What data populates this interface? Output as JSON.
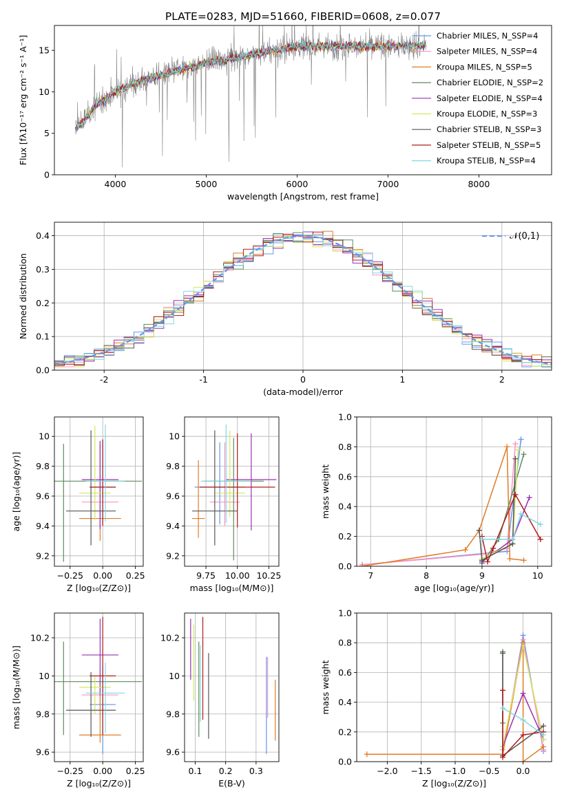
{
  "figure": {
    "title": "PLATE=0283, MJD=51660, FIBERID=0608, z=0.077"
  },
  "chart_data": [
    {
      "id": "spectrum",
      "type": "line",
      "xlabel": "wavelength [Angstrom, rest frame]",
      "ylabel": "Flux [fλ10⁻¹⁷ erg cm⁻² s⁻¹ A⁻¹]",
      "xlim": [
        3330,
        8800
      ],
      "ylim": [
        0,
        18
      ],
      "xticks": [
        4000,
        5000,
        6000,
        7000,
        8000
      ],
      "yticks": [
        0,
        5,
        10,
        15
      ],
      "legend_position": "right",
      "data_x_range": [
        3560,
        7420
      ],
      "series": [
        {
          "name": "data",
          "kind": "data",
          "color": "#808080"
        },
        {
          "name": "Chabrier MILES, N_SSP=4",
          "color": "#6495ed"
        },
        {
          "name": "Salpeter MILES, N_SSP=4",
          "color": "#ff91c0"
        },
        {
          "name": "Kroupa MILES, N_SSP=5",
          "color": "#e07b24"
        },
        {
          "name": "Chabrier ELODIE, N_SSP=2",
          "color": "#5b8c5a"
        },
        {
          "name": "Salpeter ELODIE, N_SSP=4",
          "color": "#9b2fb2"
        },
        {
          "name": "Kroupa ELODIE, N_SSP=3",
          "color": "#d4e85a"
        },
        {
          "name": "Chabrier STELIB, N_SSP=3",
          "color": "#555555"
        },
        {
          "name": "Salpeter STELIB, N_SSP=5",
          "color": "#b21a1a"
        },
        {
          "name": "Kroupa STELIB, N_SSP=4",
          "color": "#7fd8e0"
        }
      ],
      "continuum": [
        [
          3560,
          5.5
        ],
        [
          3650,
          6.5
        ],
        [
          3800,
          8.5
        ],
        [
          4000,
          10.0
        ],
        [
          4200,
          11.0
        ],
        [
          4500,
          12.0
        ],
        [
          5000,
          13.5
        ],
        [
          5500,
          14.5
        ],
        [
          6000,
          15.5
        ],
        [
          6500,
          15.5
        ],
        [
          7000,
          15.5
        ],
        [
          7400,
          15.6
        ]
      ]
    },
    {
      "id": "residuals",
      "type": "histogram",
      "xlabel": "(data-model)/error",
      "ylabel": "Normed distribution",
      "xlim": [
        -2.5,
        2.5
      ],
      "ylim": [
        0,
        0.44
      ],
      "xticks": [
        -2,
        -1,
        0,
        1,
        2
      ],
      "yticks": [
        0.0,
        0.1,
        0.2,
        0.3,
        0.4
      ],
      "grid": true,
      "legend": [
        {
          "name": "𝒩(0,1)",
          "style": "dashed",
          "color": "#6495ed"
        }
      ],
      "legend_position": "top-right",
      "bin_width": 0.1,
      "bin_start": -2.5
    },
    {
      "id": "z-age",
      "type": "errorbar",
      "xlabel": "Z [log₁₀(Z/Z⊙)]",
      "ylabel": "age  [log₁₀(age/yr)]",
      "xlim": [
        -0.37,
        0.31
      ],
      "ylim": [
        9.13,
        10.13
      ],
      "xticks": [
        -0.25,
        0.0,
        0.25
      ],
      "xticklabels": [
        "−0.25",
        "0.00",
        "0.25"
      ],
      "yticks": [
        9.2,
        9.4,
        9.6,
        9.8,
        10.0
      ],
      "grid": true,
      "points": [
        {
          "x": 0.0,
          "xerr": 0.1,
          "y": 9.66,
          "yerr_lo": 0.24,
          "yerr_hi": 0.32,
          "color": "#6495ed"
        },
        {
          "x": -0.02,
          "xerr": 0.14,
          "y": 9.56,
          "yerr_lo": 0.16,
          "yerr_hi": 0.4,
          "color": "#ff91c0"
        },
        {
          "x": -0.02,
          "xerr": 0.16,
          "y": 9.45,
          "yerr_lo": 0.15,
          "yerr_hi": 0.49,
          "color": "#e07b24"
        },
        {
          "x": -0.3,
          "xerr": 0.6,
          "y": 9.7,
          "yerr_lo": 0.54,
          "yerr_hi": 0.25,
          "color": "#5b8c5a"
        },
        {
          "x": -0.02,
          "xerr": 0.14,
          "y": 9.71,
          "yerr_lo": 0.33,
          "yerr_hi": 0.26,
          "color": "#9b2fb2"
        },
        {
          "x": -0.06,
          "xerr": 0.12,
          "y": 9.62,
          "yerr_lo": 0.18,
          "yerr_hi": 0.45,
          "color": "#d4e85a"
        },
        {
          "x": -0.09,
          "xerr": 0.19,
          "y": 9.5,
          "yerr_lo": 0.23,
          "yerr_hi": 0.54,
          "color": "#555555"
        },
        {
          "x": 0.0,
          "xerr": 0.1,
          "y": 9.66,
          "yerr_lo": 0.26,
          "yerr_hi": 0.32,
          "color": "#b21a1a"
        },
        {
          "x": 0.02,
          "xerr": 0.15,
          "y": 9.7,
          "yerr_lo": 0.27,
          "yerr_hi": 0.38,
          "color": "#7fd8e0"
        }
      ]
    },
    {
      "id": "mass-age",
      "type": "errorbar",
      "xlabel": "mass [log₁₀(M/M⊙)]",
      "ylabel": "",
      "xlim": [
        9.58,
        10.33
      ],
      "ylim": [
        9.13,
        10.13
      ],
      "xticks": [
        9.75,
        10.0,
        10.25
      ],
      "xticklabels": [
        "9.75",
        "10.00",
        "10.25"
      ],
      "yticks": [
        9.2,
        9.4,
        9.6,
        9.8,
        10.0
      ],
      "grid": true,
      "points": [
        {
          "x": 9.86,
          "xerr": 0.2,
          "y": 9.66,
          "yerr_lo": 0.25,
          "yerr_hi": 0.3,
          "color": "#6495ed"
        },
        {
          "x": 9.9,
          "xerr": 0.12,
          "y": 9.56,
          "yerr_lo": 0.16,
          "yerr_hi": 0.4,
          "color": "#ff91c0"
        },
        {
          "x": 9.69,
          "xerr": 0.05,
          "y": 9.45,
          "yerr_lo": 0.13,
          "yerr_hi": 0.39,
          "color": "#e07b24"
        },
        {
          "x": 9.97,
          "xerr": 0.24,
          "y": 9.7,
          "yerr_lo": 0.53,
          "yerr_hi": 0.29,
          "color": "#5b8c5a"
        },
        {
          "x": 10.11,
          "xerr": 0.2,
          "y": 9.71,
          "yerr_lo": 0.34,
          "yerr_hi": 0.31,
          "color": "#9b2fb2"
        },
        {
          "x": 9.94,
          "xerr": 0.12,
          "y": 9.62,
          "yerr_lo": 0.16,
          "yerr_hi": 0.42,
          "color": "#d4e85a"
        },
        {
          "x": 9.82,
          "xerr": 0.18,
          "y": 9.5,
          "yerr_lo": 0.23,
          "yerr_hi": 0.54,
          "color": "#555555"
        },
        {
          "x": 10.0,
          "xerr": 0.3,
          "y": 9.66,
          "yerr_lo": 0.27,
          "yerr_hi": 0.36,
          "color": "#b21a1a"
        },
        {
          "x": 9.91,
          "xerr": 0.2,
          "y": 9.7,
          "yerr_lo": 0.28,
          "yerr_hi": 0.38,
          "color": "#7fd8e0"
        }
      ]
    },
    {
      "id": "age-weight",
      "type": "line",
      "xlabel": "age  [log₁₀(age/yr)]",
      "ylabel": "mass weight",
      "xlim": [
        6.75,
        10.25
      ],
      "ylim": [
        0,
        1
      ],
      "xticks": [
        7,
        8,
        9,
        10
      ],
      "yticks": [
        0.0,
        0.2,
        0.4,
        0.6,
        0.8,
        1.0
      ],
      "grid": true,
      "series": [
        {
          "name": "Chabrier MILES",
          "color": "#6495ed",
          "x": [
            6.85,
            9.45,
            9.7
          ],
          "y": [
            0.01,
            0.1,
            0.85
          ]
        },
        {
          "name": "Salpeter MILES",
          "color": "#ff91c0",
          "x": [
            6.85,
            9.0,
            9.45,
            9.6
          ],
          "y": [
            0.01,
            0.08,
            0.12,
            0.82
          ]
        },
        {
          "name": "Kroupa MILES",
          "color": "#e07b24",
          "x": [
            6.85,
            8.7,
            8.95,
            9.45,
            9.5,
            9.75
          ],
          "y": [
            0.0,
            0.11,
            0.24,
            0.8,
            0.05,
            0.04
          ]
        },
        {
          "name": "Chabrier ELODIE",
          "color": "#5b8c5a",
          "x": [
            9.0,
            9.3,
            9.75
          ],
          "y": [
            0.02,
            0.18,
            0.75
          ]
        },
        {
          "name": "Salpeter ELODIE",
          "color": "#9b2fb2",
          "x": [
            9.0,
            9.55,
            9.85
          ],
          "y": [
            0.03,
            0.18,
            0.46
          ]
        },
        {
          "name": "Kroupa ELODIE",
          "color": "#d4e85a",
          "x": [
            9.0,
            9.55,
            9.65
          ],
          "y": [
            0.05,
            0.15,
            0.78
          ]
        },
        {
          "name": "Chabrier STELIB",
          "color": "#555555",
          "x": [
            8.95,
            9.0,
            9.55,
            9.6
          ],
          "y": [
            0.24,
            0.04,
            0.15,
            0.72
          ]
        },
        {
          "name": "Salpeter STELIB",
          "color": "#b21a1a",
          "x": [
            9.0,
            9.1,
            9.2,
            9.6,
            10.05
          ],
          "y": [
            0.2,
            0.03,
            0.12,
            0.48,
            0.18
          ]
        },
        {
          "name": "Kroupa STELIB",
          "color": "#7fd8e0",
          "x": [
            9.0,
            9.55,
            9.7,
            10.05
          ],
          "y": [
            0.18,
            0.18,
            0.35,
            0.28
          ]
        }
      ]
    },
    {
      "id": "z-mass",
      "type": "errorbar",
      "xlabel": "Z [log₁₀(Z/Z⊙)]",
      "ylabel": "mass [log₁₀(M/M⊙)]",
      "xlim": [
        -0.37,
        0.31
      ],
      "ylim": [
        9.55,
        10.33
      ],
      "xticks": [
        -0.25,
        0.0,
        0.25
      ],
      "xticklabels": [
        "−0.25",
        "0.00",
        "0.25"
      ],
      "yticks": [
        9.6,
        9.8,
        10.0,
        10.2
      ],
      "grid": true,
      "points": [
        {
          "x": 0.0,
          "xerr": 0.1,
          "y": 9.85,
          "yerr_lo": 0.26,
          "yerr_hi": 0.2,
          "color": "#6495ed"
        },
        {
          "x": -0.02,
          "xerr": 0.14,
          "y": 9.9,
          "yerr_lo": 0.12,
          "yerr_hi": 0.14,
          "color": "#ff91c0"
        },
        {
          "x": -0.02,
          "xerr": 0.16,
          "y": 9.69,
          "yerr_lo": 0.04,
          "yerr_hi": 0.3,
          "color": "#e07b24"
        },
        {
          "x": -0.3,
          "xerr": 0.6,
          "y": 9.97,
          "yerr_lo": 0.28,
          "yerr_hi": 0.21,
          "color": "#5b8c5a"
        },
        {
          "x": -0.02,
          "xerr": 0.14,
          "y": 10.11,
          "yerr_lo": 0.21,
          "yerr_hi": 0.19,
          "color": "#9b2fb2"
        },
        {
          "x": -0.06,
          "xerr": 0.12,
          "y": 9.94,
          "yerr_lo": 0.14,
          "yerr_hi": 0.06,
          "color": "#d4e85a"
        },
        {
          "x": -0.09,
          "xerr": 0.19,
          "y": 9.82,
          "yerr_lo": 0.14,
          "yerr_hi": 0.2,
          "color": "#555555"
        },
        {
          "x": 0.0,
          "xerr": 0.1,
          "y": 10.0,
          "yerr_lo": 0.31,
          "yerr_hi": 0.31,
          "color": "#b21a1a"
        },
        {
          "x": 0.02,
          "xerr": 0.15,
          "y": 9.91,
          "yerr_lo": 0.21,
          "yerr_hi": 0.16,
          "color": "#7fd8e0"
        }
      ]
    },
    {
      "id": "ebv-mass",
      "type": "errorbar",
      "xlabel": "E(B-V)",
      "ylabel": "",
      "xlim": [
        0.065,
        0.375
      ],
      "ylim": [
        9.55,
        10.33
      ],
      "xticks": [
        0.1,
        0.2,
        0.3
      ],
      "yticks": [
        9.6,
        9.8,
        10.0,
        10.2
      ],
      "grid": true,
      "points": [
        {
          "x": 0.085,
          "y": 10.14,
          "yerr_lo": 0.16,
          "yerr_hi": 0.16,
          "color": "#9b2fb2"
        },
        {
          "x": 0.095,
          "y": 10.07,
          "yerr_lo": 0.2,
          "yerr_hi": 0.2,
          "color": "#d4e85a"
        },
        {
          "x": 0.112,
          "y": 9.9,
          "yerr_lo": 0.22,
          "yerr_hi": 0.28,
          "color": "#5b8c5a"
        },
        {
          "x": 0.125,
          "y": 10.05,
          "yerr_lo": 0.28,
          "yerr_hi": 0.26,
          "color": "#b21a1a"
        },
        {
          "x": 0.144,
          "y": 9.86,
          "yerr_lo": 0.19,
          "yerr_hi": 0.26,
          "color": "#555555"
        },
        {
          "x": 0.117,
          "y": 9.98,
          "yerr_lo": 0.22,
          "yerr_hi": 0.18,
          "color": "#7fd8e0"
        },
        {
          "x": 0.334,
          "y": 9.84,
          "yerr_lo": 0.25,
          "yerr_hi": 0.26,
          "color": "#6495ed"
        },
        {
          "x": 0.338,
          "y": 9.9,
          "yerr_lo": 0.12,
          "yerr_hi": 0.2,
          "color": "#ff91c0"
        },
        {
          "x": 0.363,
          "y": 9.82,
          "yerr_lo": 0.16,
          "yerr_hi": 0.16,
          "color": "#e07b24"
        }
      ]
    },
    {
      "id": "z-weight",
      "type": "line",
      "xlabel": "Z [log₁₀(Z/Z⊙)]",
      "ylabel": "mass weight",
      "xlim": [
        -2.45,
        0.42
      ],
      "ylim": [
        0,
        1
      ],
      "xticks": [
        -2.0,
        -1.5,
        -1.0,
        -0.5,
        0.0
      ],
      "xticklabels": [
        "−2.0",
        "−1.5",
        "−1.0",
        "−0.5",
        "0.0"
      ],
      "yticks": [
        0.0,
        0.2,
        0.4,
        0.6,
        0.8,
        1.0
      ],
      "grid": true,
      "series": [
        {
          "name": "Chabrier MILES",
          "color": "#6495ed",
          "x": [
            -0.3,
            0.0,
            0.3
          ],
          "y": [
            0.05,
            0.85,
            0.07
          ]
        },
        {
          "name": "Salpeter MILES",
          "color": "#ff91c0",
          "x": [
            -0.3,
            0.0,
            0.3
          ],
          "y": [
            0.08,
            0.82,
            0.08
          ]
        },
        {
          "name": "Kroupa MILES",
          "color": "#e07b24",
          "x": [
            -2.3,
            -0.3,
            0.0,
            0.0,
            0.3
          ],
          "y": [
            0.05,
            0.05,
            0.8,
            0.0,
            0.1
          ]
        },
        {
          "name": "Chabrier ELODIE",
          "color": "#5b8c5a",
          "x": [
            -0.3,
            -0.3
          ],
          "y": [
            0.26,
            0.74
          ]
        },
        {
          "name": "Salpeter ELODIE",
          "color": "#9b2fb2",
          "x": [
            -0.3,
            0.0,
            0.3
          ],
          "y": [
            0.1,
            0.46,
            0.15
          ]
        },
        {
          "name": "Kroupa ELODIE",
          "color": "#d4e85a",
          "x": [
            -0.3,
            0.0,
            0.3
          ],
          "y": [
            0.1,
            0.78,
            0.15
          ]
        },
        {
          "name": "Chabrier STELIB",
          "color": "#555555",
          "x": [
            -0.3,
            -0.3,
            0.3
          ],
          "y": [
            0.73,
            0.04,
            0.24
          ]
        },
        {
          "name": "Salpeter STELIB",
          "color": "#b21a1a",
          "x": [
            -0.3,
            -0.3,
            0.0,
            0.3
          ],
          "y": [
            0.48,
            0.03,
            0.18,
            0.2
          ]
        },
        {
          "name": "Kroupa STELIB",
          "color": "#7fd8e0",
          "x": [
            -0.3,
            0.0,
            0.3
          ],
          "y": [
            0.36,
            0.28,
            0.18
          ]
        }
      ]
    }
  ]
}
